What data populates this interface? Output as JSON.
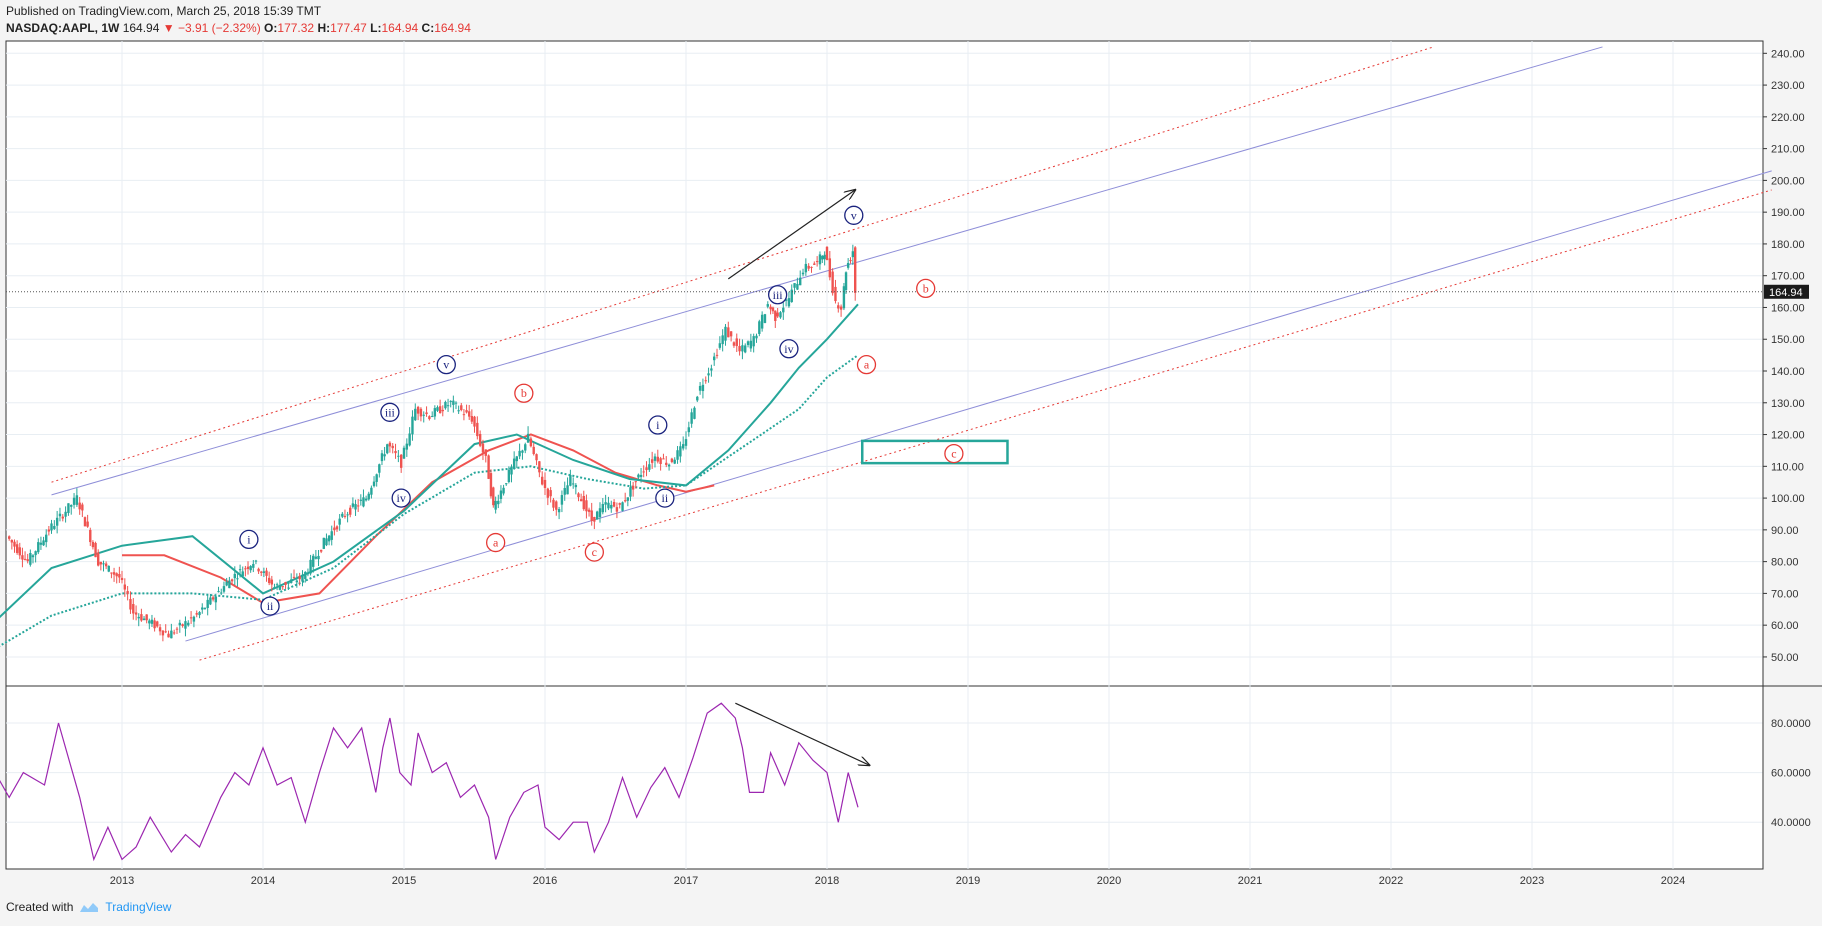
{
  "header": {
    "published": "Published on TradingView.com, March 25, 2018 15:39 TMT",
    "symbol": "NASDAQ:AAPL, 1W",
    "last": "164.94",
    "change": "−3.91 (−2.32%)",
    "o_label": "O:",
    "o": "177.32",
    "h_label": "H:",
    "h": "177.47",
    "l_label": "L:",
    "l": "164.94",
    "c_label": "C:",
    "c": "164.94"
  },
  "footer": {
    "created": "Created with",
    "brand": "TradingView"
  },
  "colors": {
    "up": "#26a69a",
    "down": "#ef5350",
    "ma_green": "#26a69a",
    "ma_red": "#ef5350",
    "channel_blue": "#8e8ed8",
    "channel_red": "#e53935",
    "rsi": "#9c27b0",
    "wave_blue": "#1a237e",
    "wave_red": "#e53935",
    "zone": "#26a69a"
  },
  "chart_data": {
    "type": "candlestick",
    "x_ticks": [
      "2013",
      "2014",
      "2015",
      "2016",
      "2017",
      "2018",
      "2019",
      "2020",
      "2021",
      "2022",
      "2023",
      "2024"
    ],
    "price_ticks": [
      "240.00",
      "230.00",
      "220.00",
      "210.00",
      "200.00",
      "190.00",
      "180.00",
      "170.00",
      "160.00",
      "150.00",
      "140.00",
      "130.00",
      "120.00",
      "110.00",
      "100.00",
      "90.00",
      "80.00",
      "70.00",
      "60.00",
      "50.00"
    ],
    "rsi_ticks": [
      "80.0000",
      "60.0000",
      "40.0000"
    ],
    "ylim": [
      40,
      242
    ],
    "rsi_ylim": [
      18,
      92
    ],
    "last_price": "164.94",
    "price_path": [
      [
        2012.2,
        88
      ],
      [
        2012.35,
        80
      ],
      [
        2012.5,
        90
      ],
      [
        2012.7,
        100
      ],
      [
        2012.85,
        80
      ],
      [
        2013.0,
        75
      ],
      [
        2013.1,
        64
      ],
      [
        2013.25,
        60
      ],
      [
        2013.35,
        57
      ],
      [
        2013.55,
        63
      ],
      [
        2013.8,
        75
      ],
      [
        2013.95,
        80
      ],
      [
        2014.1,
        72
      ],
      [
        2014.3,
        75
      ],
      [
        2014.45,
        86
      ],
      [
        2014.6,
        95
      ],
      [
        2014.75,
        100
      ],
      [
        2014.9,
        117
      ],
      [
        2015.0,
        111
      ],
      [
        2015.1,
        128
      ],
      [
        2015.2,
        126
      ],
      [
        2015.35,
        130
      ],
      [
        2015.5,
        125
      ],
      [
        2015.6,
        112
      ],
      [
        2015.65,
        97
      ],
      [
        2015.8,
        111
      ],
      [
        2015.9,
        119
      ],
      [
        2016.0,
        105
      ],
      [
        2016.1,
        96
      ],
      [
        2016.2,
        106
      ],
      [
        2016.35,
        93
      ],
      [
        2016.45,
        98
      ],
      [
        2016.55,
        97
      ],
      [
        2016.7,
        108
      ],
      [
        2016.8,
        113
      ],
      [
        2016.9,
        111
      ],
      [
        2017.0,
        116
      ],
      [
        2017.1,
        133
      ],
      [
        2017.2,
        142
      ],
      [
        2017.3,
        153
      ],
      [
        2017.4,
        146
      ],
      [
        2017.5,
        150
      ],
      [
        2017.6,
        161
      ],
      [
        2017.65,
        157
      ],
      [
        2017.75,
        163
      ],
      [
        2017.85,
        172
      ],
      [
        2017.95,
        174
      ],
      [
        2018.0,
        178
      ],
      [
        2018.08,
        162
      ],
      [
        2018.12,
        160
      ],
      [
        2018.15,
        172
      ],
      [
        2018.2,
        178
      ],
      [
        2018.22,
        165
      ]
    ],
    "ma_green_solid": [
      [
        2012.0,
        57
      ],
      [
        2012.5,
        78
      ],
      [
        2013.0,
        85
      ],
      [
        2013.5,
        88
      ],
      [
        2014.0,
        70
      ],
      [
        2014.5,
        80
      ],
      [
        2015.0,
        96
      ],
      [
        2015.5,
        117
      ],
      [
        2015.8,
        120
      ],
      [
        2016.2,
        112
      ],
      [
        2016.6,
        106
      ],
      [
        2017.0,
        104
      ],
      [
        2017.3,
        115
      ],
      [
        2017.6,
        130
      ],
      [
        2017.8,
        141
      ],
      [
        2018.0,
        150
      ],
      [
        2018.22,
        161
      ]
    ],
    "ma_red": [
      [
        2013.0,
        82
      ],
      [
        2013.3,
        82
      ],
      [
        2013.7,
        75
      ],
      [
        2014.0,
        67
      ],
      [
        2014.4,
        70
      ],
      [
        2014.8,
        88
      ],
      [
        2015.2,
        105
      ],
      [
        2015.6,
        115
      ],
      [
        2015.9,
        120
      ],
      [
        2016.2,
        115
      ],
      [
        2016.5,
        108
      ],
      [
        2016.8,
        104
      ],
      [
        2017.0,
        102
      ],
      [
        2017.2,
        104
      ]
    ],
    "ma_green_dotted": [
      [
        2012.0,
        50
      ],
      [
        2012.5,
        63
      ],
      [
        2013.0,
        70
      ],
      [
        2013.5,
        70
      ],
      [
        2014.0,
        68
      ],
      [
        2014.5,
        78
      ],
      [
        2015.0,
        95
      ],
      [
        2015.5,
        108
      ],
      [
        2015.9,
        110
      ],
      [
        2016.3,
        106
      ],
      [
        2016.7,
        103
      ],
      [
        2017.0,
        104
      ],
      [
        2017.4,
        116
      ],
      [
        2017.8,
        128
      ],
      [
        2018.0,
        138
      ],
      [
        2018.22,
        145
      ]
    ],
    "channels": [
      {
        "name": "upper_red_dotted",
        "from": [
          2012.5,
          105
        ],
        "to": [
          2022.3,
          242
        ]
      },
      {
        "name": "upper_blue",
        "from": [
          2012.5,
          101
        ],
        "to": [
          2023.5,
          242
        ]
      },
      {
        "name": "lower_blue",
        "from": [
          2013.45,
          55
        ],
        "to": [
          2024.7,
          203
        ]
      },
      {
        "name": "lower_red_dotted",
        "from": [
          2013.55,
          49
        ],
        "to": [
          2024.7,
          197
        ]
      }
    ],
    "trend_arrow": {
      "from": [
        2017.3,
        169
      ],
      "to": [
        2018.2,
        197
      ]
    },
    "zone": {
      "x0": 2018.25,
      "x1": 2019.28,
      "y0": 111,
      "y1": 118
    },
    "wave_labels": [
      {
        "text": "i",
        "x": 2013.9,
        "y": 87,
        "color": "blue"
      },
      {
        "text": "ii",
        "x": 2014.05,
        "y": 66,
        "color": "blue"
      },
      {
        "text": "iii",
        "x": 2014.9,
        "y": 127,
        "color": "blue"
      },
      {
        "text": "iv",
        "x": 2014.98,
        "y": 100,
        "color": "blue"
      },
      {
        "text": "v",
        "x": 2015.3,
        "y": 142,
        "color": "blue"
      },
      {
        "text": "i",
        "x": 2016.8,
        "y": 123,
        "color": "blue"
      },
      {
        "text": "ii",
        "x": 2016.85,
        "y": 100,
        "color": "blue"
      },
      {
        "text": "iii",
        "x": 2017.65,
        "y": 164,
        "color": "blue"
      },
      {
        "text": "iv",
        "x": 2017.73,
        "y": 147,
        "color": "blue"
      },
      {
        "text": "v",
        "x": 2018.19,
        "y": 189,
        "color": "blue"
      },
      {
        "text": "a",
        "x": 2015.65,
        "y": 86,
        "color": "red"
      },
      {
        "text": "b",
        "x": 2015.85,
        "y": 133,
        "color": "red"
      },
      {
        "text": "c",
        "x": 2016.35,
        "y": 83,
        "color": "red"
      },
      {
        "text": "a",
        "x": 2018.28,
        "y": 142,
        "color": "red"
      },
      {
        "text": "b",
        "x": 2018.7,
        "y": 166,
        "color": "red"
      },
      {
        "text": "c",
        "x": 2018.9,
        "y": 114,
        "color": "red"
      }
    ],
    "rsi_path": [
      [
        2012.0,
        90
      ],
      [
        2012.1,
        60
      ],
      [
        2012.2,
        50
      ],
      [
        2012.3,
        60
      ],
      [
        2012.45,
        55
      ],
      [
        2012.55,
        80
      ],
      [
        2012.7,
        50
      ],
      [
        2012.8,
        25
      ],
      [
        2012.9,
        38
      ],
      [
        2013.0,
        25
      ],
      [
        2013.1,
        30
      ],
      [
        2013.2,
        42
      ],
      [
        2013.35,
        28
      ],
      [
        2013.45,
        35
      ],
      [
        2013.55,
        30
      ],
      [
        2013.7,
        50
      ],
      [
        2013.8,
        60
      ],
      [
        2013.9,
        55
      ],
      [
        2014.0,
        70
      ],
      [
        2014.1,
        55
      ],
      [
        2014.2,
        58
      ],
      [
        2014.3,
        40
      ],
      [
        2014.4,
        60
      ],
      [
        2014.5,
        78
      ],
      [
        2014.6,
        70
      ],
      [
        2014.7,
        78
      ],
      [
        2014.8,
        52
      ],
      [
        2014.85,
        70
      ],
      [
        2014.9,
        82
      ],
      [
        2014.97,
        60
      ],
      [
        2015.05,
        55
      ],
      [
        2015.1,
        76
      ],
      [
        2015.2,
        60
      ],
      [
        2015.3,
        64
      ],
      [
        2015.4,
        50
      ],
      [
        2015.5,
        55
      ],
      [
        2015.6,
        42
      ],
      [
        2015.65,
        25
      ],
      [
        2015.75,
        42
      ],
      [
        2015.85,
        52
      ],
      [
        2015.95,
        55
      ],
      [
        2016.0,
        38
      ],
      [
        2016.1,
        33
      ],
      [
        2016.2,
        40
      ],
      [
        2016.3,
        40
      ],
      [
        2016.35,
        28
      ],
      [
        2016.45,
        40
      ],
      [
        2016.55,
        58
      ],
      [
        2016.65,
        42
      ],
      [
        2016.75,
        54
      ],
      [
        2016.85,
        62
      ],
      [
        2016.95,
        50
      ],
      [
        2017.05,
        66
      ],
      [
        2017.15,
        84
      ],
      [
        2017.25,
        88
      ],
      [
        2017.35,
        82
      ],
      [
        2017.4,
        70
      ],
      [
        2017.45,
        52
      ],
      [
        2017.55,
        52
      ],
      [
        2017.6,
        68
      ],
      [
        2017.7,
        55
      ],
      [
        2017.8,
        72
      ],
      [
        2017.9,
        65
      ],
      [
        2018.0,
        60
      ],
      [
        2018.08,
        40
      ],
      [
        2018.15,
        60
      ],
      [
        2018.22,
        46
      ]
    ],
    "rsi_arrow": {
      "from": [
        2017.35,
        88
      ],
      "to": [
        2018.3,
        63
      ]
    }
  }
}
